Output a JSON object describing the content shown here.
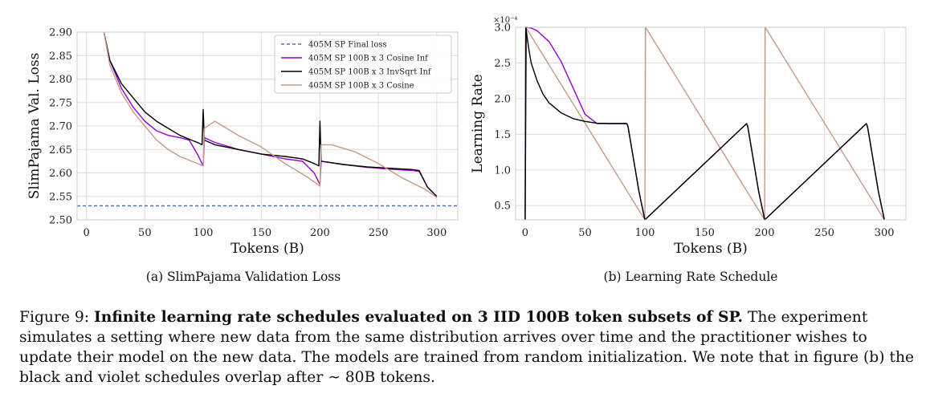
{
  "chart_data": [
    {
      "type": "line",
      "subcaption": "(a) SlimPajama Validation Loss",
      "xlabel": "Tokens (B)",
      "ylabel": "SlimPajama Val. Loss",
      "xlim": [
        -8,
        318
      ],
      "ylim": [
        2.5,
        2.9
      ],
      "xticks": [
        0,
        50,
        100,
        150,
        200,
        250,
        300
      ],
      "yticks": [
        2.5,
        2.55,
        2.6,
        2.65,
        2.7,
        2.75,
        2.8,
        2.85,
        2.9
      ],
      "ytick_labels": [
        "2.50",
        "2.55",
        "2.60",
        "2.65",
        "2.70",
        "2.75",
        "2.80",
        "2.85",
        "2.90"
      ],
      "grid": true,
      "legend_position": "top-right",
      "series": [
        {
          "name": "405M SP  Final loss",
          "color": "#4c72b0",
          "style": "dashed",
          "x": [
            -8,
            318
          ],
          "y": [
            2.53,
            2.53
          ]
        },
        {
          "name": "405M SP 100B x 3 Cosine Inf",
          "color": "#9400d3",
          "style": "solid",
          "x": [
            15,
            20,
            30,
            40,
            50,
            60,
            70,
            80,
            88,
            95,
            100,
            101,
            110,
            130,
            150,
            170,
            185,
            195,
            200,
            201,
            220,
            240,
            260,
            280,
            285,
            292,
            300
          ],
          "y": [
            2.9,
            2.84,
            2.78,
            2.74,
            2.71,
            2.69,
            2.68,
            2.675,
            2.67,
            2.64,
            2.615,
            2.675,
            2.665,
            2.65,
            2.64,
            2.63,
            2.625,
            2.6,
            2.575,
            2.625,
            2.618,
            2.612,
            2.608,
            2.605,
            2.603,
            2.57,
            2.55
          ]
        },
        {
          "name": "405M SP 100B x 3 InvSqrt Inf",
          "color": "#000000",
          "style": "solid",
          "x": [
            15,
            20,
            30,
            40,
            50,
            60,
            70,
            80,
            90,
            95,
            99,
            100,
            101,
            110,
            130,
            150,
            170,
            185,
            195,
            199,
            200,
            201,
            220,
            240,
            260,
            280,
            285,
            292,
            300
          ],
          "y": [
            2.9,
            2.84,
            2.79,
            2.76,
            2.73,
            2.71,
            2.695,
            2.68,
            2.67,
            2.665,
            2.66,
            2.735,
            2.67,
            2.66,
            2.65,
            2.64,
            2.635,
            2.63,
            2.62,
            2.615,
            2.71,
            2.625,
            2.618,
            2.613,
            2.61,
            2.607,
            2.605,
            2.57,
            2.55
          ]
        },
        {
          "name": "405M SP 100B x 3 Cosine",
          "color": "#c49a85",
          "style": "solid",
          "x": [
            15,
            20,
            30,
            40,
            50,
            60,
            70,
            80,
            90,
            100,
            101,
            110,
            130,
            150,
            170,
            190,
            200,
            201,
            210,
            230,
            250,
            270,
            290,
            300
          ],
          "y": [
            2.9,
            2.83,
            2.77,
            2.73,
            2.7,
            2.67,
            2.65,
            2.635,
            2.625,
            2.615,
            2.695,
            2.71,
            2.68,
            2.655,
            2.62,
            2.59,
            2.572,
            2.66,
            2.66,
            2.645,
            2.62,
            2.59,
            2.565,
            2.548
          ]
        }
      ]
    },
    {
      "type": "line",
      "subcaption": "(b) Learning Rate Schedule",
      "xlabel": "Tokens (B)",
      "ylabel": "Learning Rate",
      "scale_label": "×10⁻⁴",
      "xlim": [
        -8,
        318
      ],
      "ylim": [
        0.3,
        3.0
      ],
      "xticks": [
        0,
        50,
        100,
        150,
        200,
        250,
        300
      ],
      "yticks": [
        0.5,
        1.0,
        1.5,
        2.0,
        2.5,
        3.0
      ],
      "ytick_labels": [
        "0.5",
        "1.0",
        "1.5",
        "2.0",
        "2.5",
        "3.0"
      ],
      "grid": true,
      "series": [
        {
          "name": "Cosine",
          "color": "#c49a85",
          "x": [
            0,
            0.5,
            100,
            100.5,
            200,
            200.5,
            300
          ],
          "y": [
            0.3,
            3.0,
            0.3,
            3.0,
            0.3,
            3.0,
            0.3
          ]
        },
        {
          "name": "Cosine Inf",
          "color": "#9400d3",
          "x": [
            0,
            1,
            5,
            10,
            20,
            30,
            40,
            50,
            60,
            70,
            80,
            85,
            86,
            90,
            95,
            100,
            185,
            186,
            190,
            195,
            200,
            285,
            286,
            290,
            295,
            300
          ],
          "y": [
            0.3,
            3.0,
            2.99,
            2.95,
            2.8,
            2.52,
            2.15,
            1.78,
            1.65,
            1.65,
            1.65,
            1.65,
            1.6,
            1.2,
            0.7,
            0.3,
            1.65,
            1.6,
            1.2,
            0.7,
            0.3,
            1.65,
            1.6,
            1.2,
            0.7,
            0.3
          ]
        },
        {
          "name": "InvSqrt Inf",
          "color": "#000000",
          "x": [
            0,
            0.5,
            3,
            5,
            10,
            15,
            20,
            30,
            40,
            50,
            60,
            70,
            80,
            85,
            86,
            90,
            95,
            100,
            185,
            186,
            190,
            195,
            200,
            285,
            286,
            290,
            295,
            300
          ],
          "y": [
            0.3,
            3.0,
            2.7,
            2.5,
            2.25,
            2.06,
            1.94,
            1.8,
            1.72,
            1.68,
            1.655,
            1.65,
            1.65,
            1.65,
            1.6,
            1.2,
            0.7,
            0.3,
            1.65,
            1.6,
            1.2,
            0.7,
            0.3,
            1.65,
            1.6,
            1.2,
            0.7,
            0.3
          ]
        }
      ]
    }
  ],
  "caption": {
    "figure_label": "Figure 9:",
    "title_bold": "Infinite learning rate schedules evaluated on 3 IID 100B token subsets of SP.",
    "body": "The experiment simulates a setting where new data from the same distribution arrives over time and the practitioner wishes to update their model on the new data. The models are trained from random initialization. We note that in figure (b) the black and violet schedules overlap after ∼ 80B tokens."
  }
}
